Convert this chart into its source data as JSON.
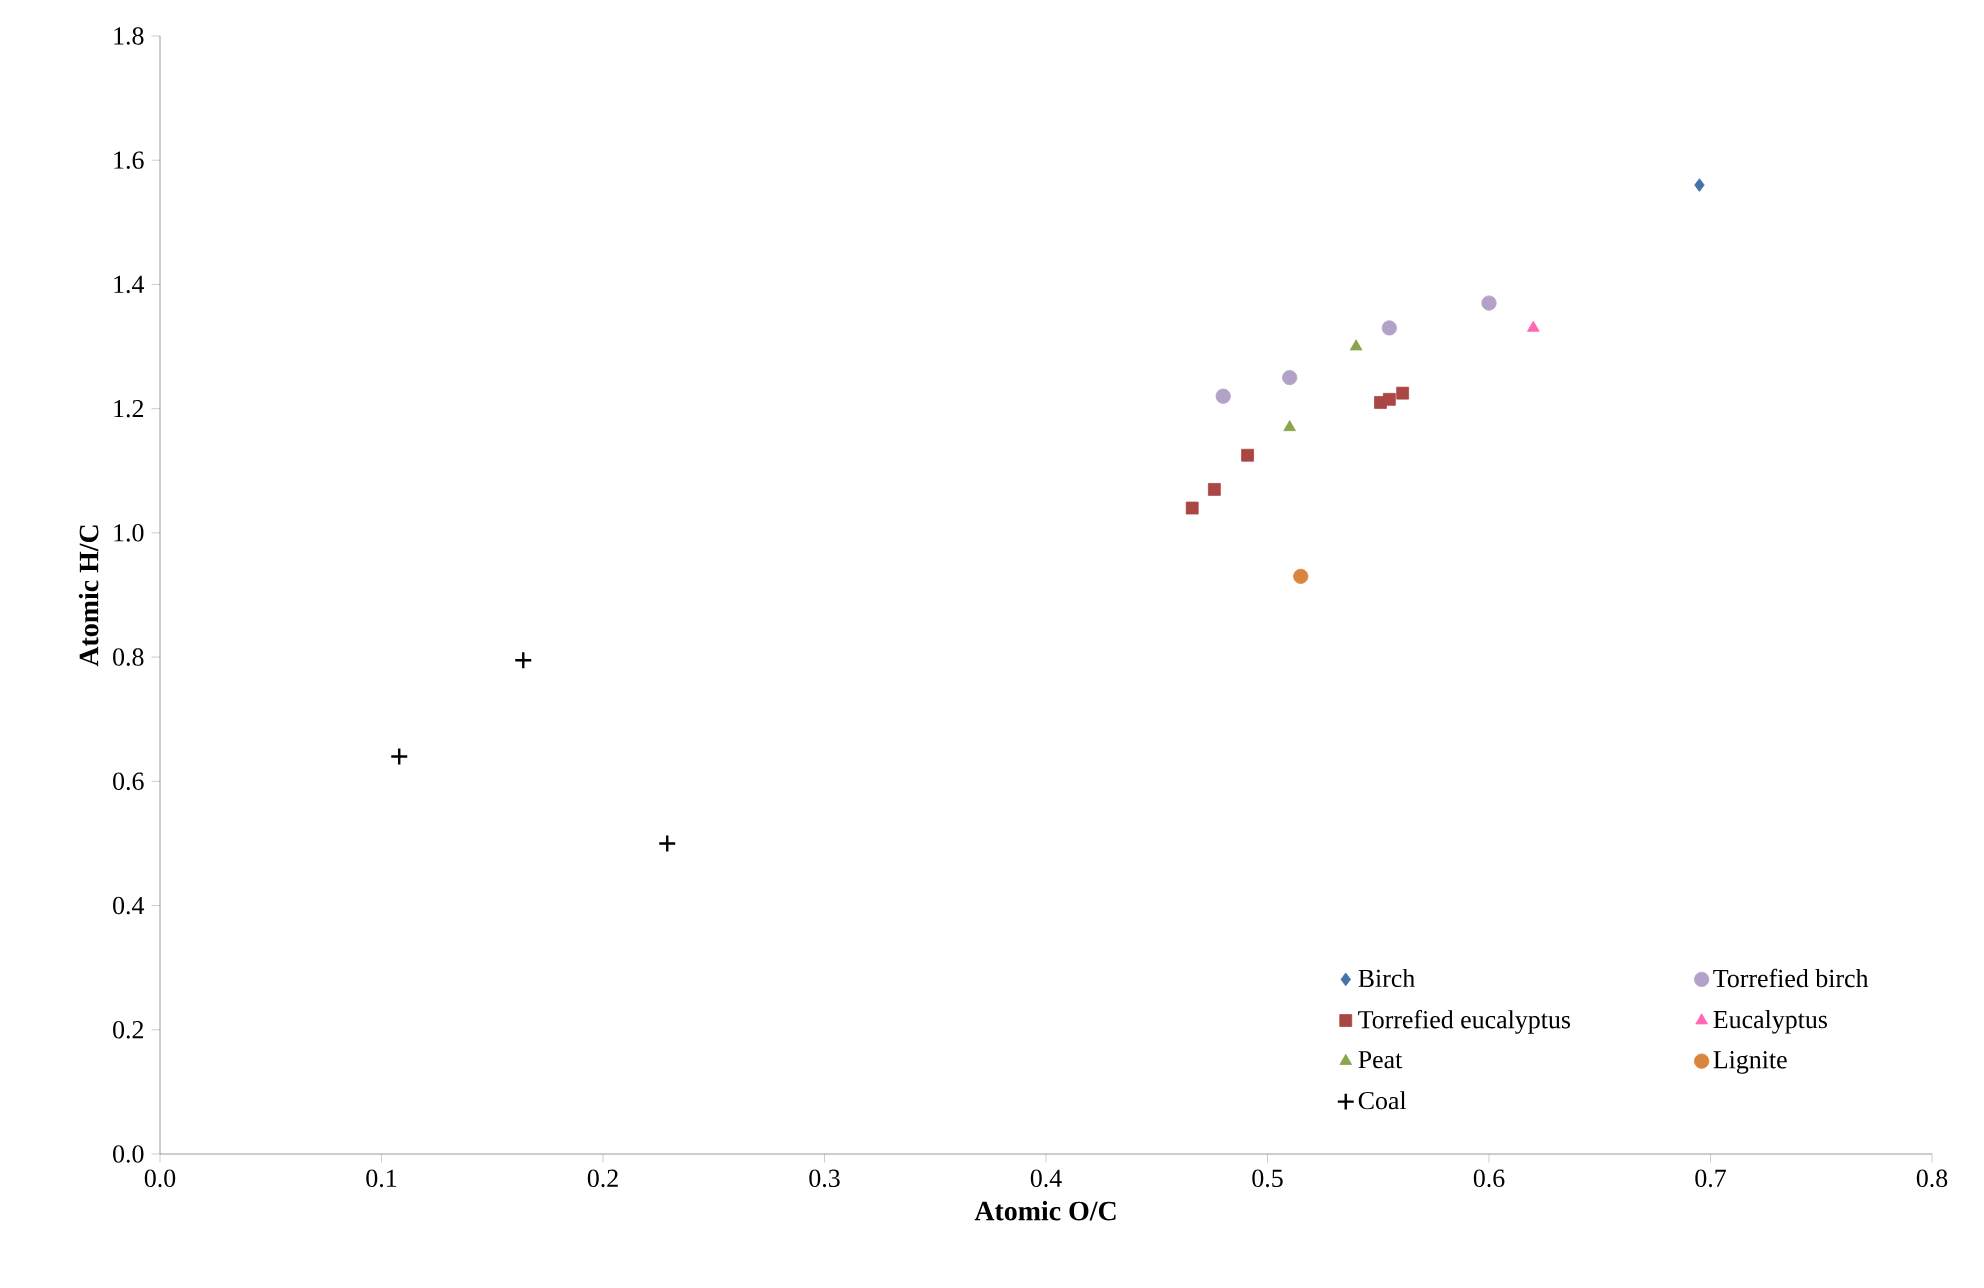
{
  "chart_data": {
    "type": "scatter",
    "xlabel": "Atomic O/C",
    "ylabel": "Atomic H/C",
    "xlim": [
      0,
      0.8
    ],
    "ylim": [
      0,
      1.8
    ],
    "xticks": [
      {
        "value": 0,
        "label": "0.0"
      },
      {
        "value": 0.1,
        "label": "0.1"
      },
      {
        "value": 0.2,
        "label": "0.2"
      },
      {
        "value": 0.3,
        "label": "0.3"
      },
      {
        "value": 0.4,
        "label": "0.4"
      },
      {
        "value": 0.5,
        "label": "0.5"
      },
      {
        "value": 0.6,
        "label": "0.6"
      },
      {
        "value": 0.7,
        "label": "0.7"
      },
      {
        "value": 0.8,
        "label": "0.8"
      }
    ],
    "yticks": [
      {
        "value": 0,
        "label": "0.0"
      },
      {
        "value": 0.2,
        "label": "0.2"
      },
      {
        "value": 0.4,
        "label": "0.4"
      },
      {
        "value": 0.6,
        "label": "0.6"
      },
      {
        "value": 0.8,
        "label": "0.8"
      },
      {
        "value": 1.0,
        "label": "1.0"
      },
      {
        "value": 1.2,
        "label": "1.2"
      },
      {
        "value": 1.4,
        "label": "1.4"
      },
      {
        "value": 1.6,
        "label": "1.6"
      },
      {
        "value": 1.8,
        "label": "1.8"
      }
    ],
    "legend": "bottom right",
    "grid": false,
    "series": [
      {
        "name": "Birch",
        "color": "#4572a7",
        "marker": "diamond",
        "x": [
          0.695
        ],
        "values": [
          1.56
        ]
      },
      {
        "name": "Torrefied birch",
        "color": "#b3a2c7",
        "marker": "circle",
        "x": [
          0.48,
          0.51,
          0.555,
          0.6
        ],
        "values": [
          1.22,
          1.25,
          1.33,
          1.37
        ]
      },
      {
        "name": "Torrefied eucalyptus",
        "color": "#aa4643",
        "marker": "square",
        "x": [
          0.466,
          0.476,
          0.491,
          0.551,
          0.555,
          0.561
        ],
        "values": [
          1.04,
          1.07,
          1.125,
          1.21,
          1.215,
          1.225
        ]
      },
      {
        "name": "Eucalyptus",
        "color": "#ff66b3",
        "marker": "triangle",
        "x": [
          0.62
        ],
        "values": [
          1.33
        ]
      },
      {
        "name": "Peat",
        "color": "#89a54e",
        "marker": "triangle",
        "x": [
          0.51,
          0.54
        ],
        "values": [
          1.17,
          1.3
        ]
      },
      {
        "name": "Lignite",
        "color": "#db843d",
        "marker": "circle",
        "x": [
          0.515
        ],
        "values": [
          0.93
        ]
      },
      {
        "name": "Coal",
        "color": "#000000",
        "marker": "cross",
        "x": [
          0.108,
          0.164,
          0.229
        ],
        "values": [
          0.64,
          0.795,
          0.5
        ]
      }
    ]
  }
}
